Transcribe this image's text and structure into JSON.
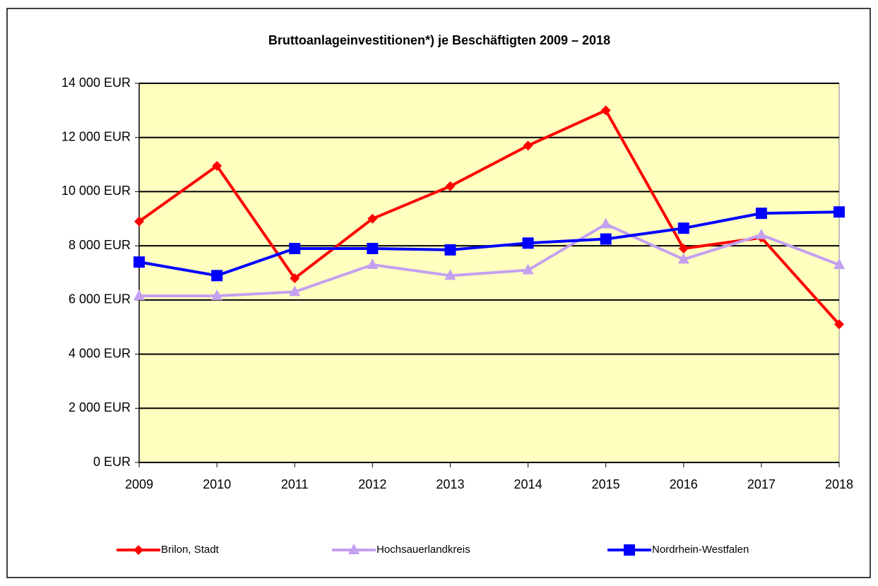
{
  "chart_data": {
    "type": "line",
    "title": "Bruttoanlageinvestitionen*) je Beschäftigten 2009 – 2018",
    "x": [
      2009,
      2010,
      2011,
      2012,
      2013,
      2014,
      2015,
      2016,
      2017,
      2018
    ],
    "xlim": [
      2009,
      2018
    ],
    "xticks": [
      2009,
      2010,
      2011,
      2012,
      2013,
      2014,
      2015,
      2016,
      2017,
      2018
    ],
    "ylim": [
      0,
      14000
    ],
    "yticks": [
      {
        "value": 0,
        "label": "0 EUR"
      },
      {
        "value": 2000,
        "label": "2 000 EUR"
      },
      {
        "value": 4000,
        "label": "4 000 EUR"
      },
      {
        "value": 6000,
        "label": "6 000 EUR"
      },
      {
        "value": 8000,
        "label": "8 000 EUR"
      },
      {
        "value": 10000,
        "label": "10 000 EUR"
      },
      {
        "value": 12000,
        "label": "12 000 EUR"
      },
      {
        "value": 14000,
        "label": "14 000 EUR"
      }
    ],
    "grid": true,
    "legend": "bottom",
    "series": [
      {
        "name": "Brilon, Stadt",
        "color": "#ff0000",
        "marker": "diamond",
        "values": [
          8900,
          10950,
          6800,
          9000,
          10200,
          11700,
          13000,
          7900,
          8300,
          5100
        ]
      },
      {
        "name": "Hochsauerlandkreis",
        "color": "#c4a0f0",
        "marker": "triangle",
        "values": [
          6150,
          6150,
          6300,
          7300,
          6900,
          7100,
          8800,
          7500,
          8400,
          7300
        ]
      },
      {
        "name": "Nordrhein-Westfalen",
        "color": "#0000ff",
        "marker": "square",
        "values": [
          7400,
          6900,
          7900,
          7900,
          7850,
          8100,
          8250,
          8650,
          9200,
          9250
        ]
      }
    ]
  }
}
